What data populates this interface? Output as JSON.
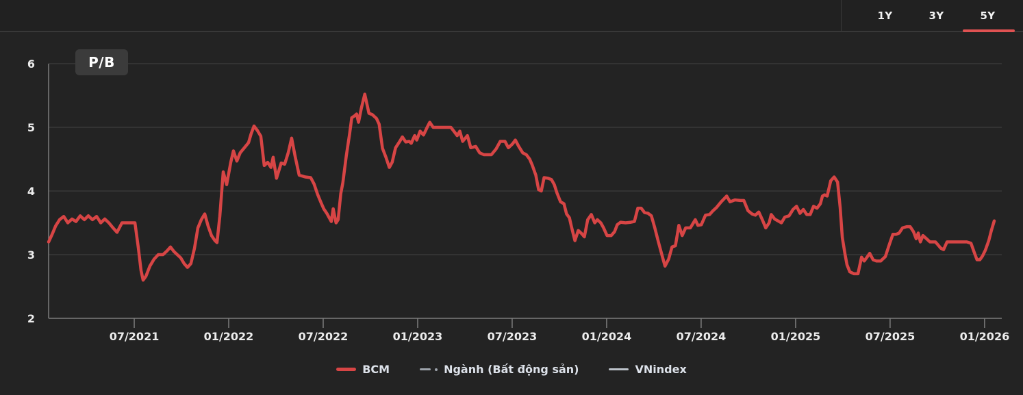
{
  "header": {
    "tabs": [
      {
        "label": "1Y",
        "active": false
      },
      {
        "label": "3Y",
        "active": false
      },
      {
        "label": "5Y",
        "active": true
      }
    ],
    "active_tab": "5Y",
    "active_underline_color": "#e05252"
  },
  "legend": {
    "items": [
      {
        "label": "BCM",
        "color": "#d74545",
        "style": "solid"
      },
      {
        "label": "Ngành (Bất động sản)",
        "color": "#9da3ab",
        "style": "dash-dot"
      },
      {
        "label": "VNindex",
        "color": "#bcc2ca",
        "style": "solid"
      }
    ]
  },
  "chart_data": {
    "type": "line",
    "title": "P/B",
    "ylim": [
      2,
      6
    ],
    "xlim": [
      2021.047,
      2026.091
    ],
    "y_ticks": [
      6,
      5,
      4,
      3,
      2
    ],
    "x_ticks": [
      {
        "t": 2021.5,
        "label": "07/2021"
      },
      {
        "t": 2022.0,
        "label": "01/2022"
      },
      {
        "t": 2022.5,
        "label": "07/2022"
      },
      {
        "t": 2023.0,
        "label": "01/2023"
      },
      {
        "t": 2023.5,
        "label": "07/2023"
      },
      {
        "t": 2024.0,
        "label": "01/2024"
      },
      {
        "t": 2024.5,
        "label": "07/2024"
      },
      {
        "t": 2025.0,
        "label": "01/2025"
      },
      {
        "t": 2025.5,
        "label": "07/2025"
      },
      {
        "t": 2026.0,
        "label": "01/2026"
      }
    ],
    "grid": "horizontal",
    "legend_position": "bottom-center",
    "colors": {
      "background": "#232323",
      "grid": "#434343",
      "axis": "#7d7d7d",
      "tick_label": "#ececec"
    },
    "series": [
      {
        "name": "BCM",
        "color": "#d74545",
        "line_style": "solid",
        "visible": true,
        "x_unit": "decimal_year",
        "points": [
          [
            2021.047,
            3.2
          ],
          [
            2021.066,
            3.32
          ],
          [
            2021.084,
            3.45
          ],
          [
            2021.105,
            3.55
          ],
          [
            2021.127,
            3.6
          ],
          [
            2021.149,
            3.5
          ],
          [
            2021.171,
            3.56
          ],
          [
            2021.192,
            3.52
          ],
          [
            2021.214,
            3.61
          ],
          [
            2021.236,
            3.55
          ],
          [
            2021.257,
            3.61
          ],
          [
            2021.279,
            3.55
          ],
          [
            2021.301,
            3.6
          ],
          [
            2021.323,
            3.5
          ],
          [
            2021.344,
            3.56
          ],
          [
            2021.366,
            3.5
          ],
          [
            2021.388,
            3.42
          ],
          [
            2021.409,
            3.35
          ],
          [
            2021.435,
            3.5
          ],
          [
            2021.475,
            3.5
          ],
          [
            2021.504,
            3.5
          ],
          [
            2021.522,
            3.1
          ],
          [
            2021.536,
            2.75
          ],
          [
            2021.547,
            2.6
          ],
          [
            2021.562,
            2.66
          ],
          [
            2021.583,
            2.82
          ],
          [
            2021.605,
            2.93
          ],
          [
            2021.627,
            3.0
          ],
          [
            2021.652,
            3.0
          ],
          [
            2021.674,
            3.06
          ],
          [
            2021.692,
            3.12
          ],
          [
            2021.71,
            3.05
          ],
          [
            2021.728,
            3.0
          ],
          [
            2021.746,
            2.95
          ],
          [
            2021.764,
            2.86
          ],
          [
            2021.782,
            2.8
          ],
          [
            2021.8,
            2.86
          ],
          [
            2021.819,
            3.1
          ],
          [
            2021.837,
            3.42
          ],
          [
            2021.855,
            3.55
          ],
          [
            2021.873,
            3.64
          ],
          [
            2021.891,
            3.45
          ],
          [
            2021.909,
            3.3
          ],
          [
            2021.927,
            3.22
          ],
          [
            2021.938,
            3.19
          ],
          [
            2021.953,
            3.6
          ],
          [
            2021.971,
            4.3
          ],
          [
            2021.989,
            4.1
          ],
          [
            2022.011,
            4.45
          ],
          [
            2022.025,
            4.63
          ],
          [
            2022.043,
            4.47
          ],
          [
            2022.061,
            4.6
          ],
          [
            2022.083,
            4.68
          ],
          [
            2022.105,
            4.76
          ],
          [
            2022.119,
            4.9
          ],
          [
            2022.134,
            5.02
          ],
          [
            2022.152,
            4.95
          ],
          [
            2022.17,
            4.86
          ],
          [
            2022.188,
            4.4
          ],
          [
            2022.206,
            4.45
          ],
          [
            2022.224,
            4.37
          ],
          [
            2022.235,
            4.53
          ],
          [
            2022.253,
            4.2
          ],
          [
            2022.278,
            4.44
          ],
          [
            2022.296,
            4.42
          ],
          [
            2022.315,
            4.6
          ],
          [
            2022.333,
            4.83
          ],
          [
            2022.351,
            4.55
          ],
          [
            2022.373,
            4.25
          ],
          [
            2022.405,
            4.22
          ],
          [
            2022.434,
            4.21
          ],
          [
            2022.452,
            4.11
          ],
          [
            2022.47,
            3.95
          ],
          [
            2022.488,
            3.82
          ],
          [
            2022.503,
            3.72
          ],
          [
            2022.521,
            3.64
          ],
          [
            2022.532,
            3.58
          ],
          [
            2022.543,
            3.52
          ],
          [
            2022.553,
            3.72
          ],
          [
            2022.568,
            3.5
          ],
          [
            2022.579,
            3.55
          ],
          [
            2022.593,
            3.96
          ],
          [
            2022.604,
            4.13
          ],
          [
            2022.622,
            4.55
          ],
          [
            2022.64,
            4.9
          ],
          [
            2022.651,
            5.15
          ],
          [
            2022.666,
            5.18
          ],
          [
            2022.677,
            5.21
          ],
          [
            2022.687,
            5.08
          ],
          [
            2022.702,
            5.3
          ],
          [
            2022.72,
            5.52
          ],
          [
            2022.742,
            5.22
          ],
          [
            2022.76,
            5.2
          ],
          [
            2022.782,
            5.14
          ],
          [
            2022.796,
            5.05
          ],
          [
            2022.814,
            4.67
          ],
          [
            2022.832,
            4.53
          ],
          [
            2022.85,
            4.37
          ],
          [
            2022.865,
            4.45
          ],
          [
            2022.883,
            4.68
          ],
          [
            2022.905,
            4.78
          ],
          [
            2022.919,
            4.85
          ],
          [
            2022.937,
            4.77
          ],
          [
            2022.955,
            4.78
          ],
          [
            2022.966,
            4.75
          ],
          [
            2022.984,
            4.87
          ],
          [
            2022.995,
            4.8
          ],
          [
            2023.013,
            4.94
          ],
          [
            2023.031,
            4.88
          ],
          [
            2023.05,
            5.0
          ],
          [
            2023.064,
            5.08
          ],
          [
            2023.082,
            5.0
          ],
          [
            2023.111,
            5.0
          ],
          [
            2023.147,
            5.0
          ],
          [
            2023.176,
            5.0
          ],
          [
            2023.194,
            4.93
          ],
          [
            2023.209,
            4.87
          ],
          [
            2023.223,
            4.94
          ],
          [
            2023.238,
            4.78
          ],
          [
            2023.263,
            4.87
          ],
          [
            2023.281,
            4.68
          ],
          [
            2023.307,
            4.7
          ],
          [
            2023.328,
            4.6
          ],
          [
            2023.35,
            4.57
          ],
          [
            2023.39,
            4.57
          ],
          [
            2023.415,
            4.66
          ],
          [
            2023.437,
            4.78
          ],
          [
            2023.462,
            4.78
          ],
          [
            2023.48,
            4.68
          ],
          [
            2023.502,
            4.74
          ],
          [
            2023.517,
            4.8
          ],
          [
            2023.535,
            4.7
          ],
          [
            2023.556,
            4.6
          ],
          [
            2023.575,
            4.57
          ],
          [
            2023.593,
            4.5
          ],
          [
            2023.607,
            4.4
          ],
          [
            2023.625,
            4.25
          ],
          [
            2023.64,
            4.02
          ],
          [
            2023.654,
            4.0
          ],
          [
            2023.669,
            4.21
          ],
          [
            2023.69,
            4.2
          ],
          [
            2023.708,
            4.18
          ],
          [
            2023.723,
            4.1
          ],
          [
            2023.737,
            3.97
          ],
          [
            2023.756,
            3.83
          ],
          [
            2023.774,
            3.8
          ],
          [
            2023.788,
            3.64
          ],
          [
            2023.803,
            3.58
          ],
          [
            2023.813,
            3.45
          ],
          [
            2023.832,
            3.22
          ],
          [
            2023.85,
            3.38
          ],
          [
            2023.868,
            3.33
          ],
          [
            2023.882,
            3.28
          ],
          [
            2023.9,
            3.55
          ],
          [
            2023.919,
            3.63
          ],
          [
            2023.937,
            3.5
          ],
          [
            2023.951,
            3.55
          ],
          [
            2023.969,
            3.5
          ],
          [
            2023.984,
            3.42
          ],
          [
            2024.002,
            3.3
          ],
          [
            2024.024,
            3.3
          ],
          [
            2024.042,
            3.36
          ],
          [
            2024.056,
            3.47
          ],
          [
            2024.074,
            3.51
          ],
          [
            2024.1,
            3.5
          ],
          [
            2024.129,
            3.51
          ],
          [
            2024.147,
            3.52
          ],
          [
            2024.165,
            3.73
          ],
          [
            2024.183,
            3.73
          ],
          [
            2024.201,
            3.66
          ],
          [
            2024.219,
            3.65
          ],
          [
            2024.237,
            3.61
          ],
          [
            2024.255,
            3.42
          ],
          [
            2024.273,
            3.21
          ],
          [
            2024.291,
            3.01
          ],
          [
            2024.309,
            2.82
          ],
          [
            2024.328,
            2.93
          ],
          [
            2024.346,
            3.12
          ],
          [
            2024.364,
            3.14
          ],
          [
            2024.382,
            3.46
          ],
          [
            2024.4,
            3.3
          ],
          [
            2024.418,
            3.42
          ],
          [
            2024.443,
            3.42
          ],
          [
            2024.469,
            3.55
          ],
          [
            2024.483,
            3.46
          ],
          [
            2024.501,
            3.47
          ],
          [
            2024.523,
            3.62
          ],
          [
            2024.545,
            3.63
          ],
          [
            2024.563,
            3.69
          ],
          [
            2024.581,
            3.74
          ],
          [
            2024.606,
            3.83
          ],
          [
            2024.635,
            3.92
          ],
          [
            2024.653,
            3.83
          ],
          [
            2024.679,
            3.86
          ],
          [
            2024.708,
            3.85
          ],
          [
            2024.726,
            3.85
          ],
          [
            2024.748,
            3.69
          ],
          [
            2024.769,
            3.64
          ],
          [
            2024.787,
            3.62
          ],
          [
            2024.805,
            3.67
          ],
          [
            2024.824,
            3.55
          ],
          [
            2024.842,
            3.42
          ],
          [
            2024.86,
            3.5
          ],
          [
            2024.871,
            3.63
          ],
          [
            2024.889,
            3.56
          ],
          [
            2024.907,
            3.53
          ],
          [
            2024.925,
            3.5
          ],
          [
            2024.943,
            3.59
          ],
          [
            2024.965,
            3.61
          ],
          [
            2024.986,
            3.71
          ],
          [
            2025.005,
            3.76
          ],
          [
            2025.023,
            3.65
          ],
          [
            2025.041,
            3.71
          ],
          [
            2025.059,
            3.63
          ],
          [
            2025.077,
            3.63
          ],
          [
            2025.095,
            3.76
          ],
          [
            2025.113,
            3.73
          ],
          [
            2025.131,
            3.8
          ],
          [
            2025.142,
            3.92
          ],
          [
            2025.153,
            3.94
          ],
          [
            2025.167,
            3.92
          ],
          [
            2025.186,
            4.16
          ],
          [
            2025.204,
            4.22
          ],
          [
            2025.222,
            4.14
          ],
          [
            2025.236,
            3.74
          ],
          [
            2025.247,
            3.27
          ],
          [
            2025.262,
            3.0
          ],
          [
            2025.272,
            2.84
          ],
          [
            2025.287,
            2.73
          ],
          [
            2025.309,
            2.7
          ],
          [
            2025.33,
            2.7
          ],
          [
            2025.349,
            2.96
          ],
          [
            2025.363,
            2.9
          ],
          [
            2025.378,
            2.96
          ],
          [
            2025.392,
            3.02
          ],
          [
            2025.41,
            2.92
          ],
          [
            2025.428,
            2.9
          ],
          [
            2025.45,
            2.9
          ],
          [
            2025.475,
            2.97
          ],
          [
            2025.497,
            3.17
          ],
          [
            2025.515,
            3.32
          ],
          [
            2025.533,
            3.32
          ],
          [
            2025.548,
            3.34
          ],
          [
            2025.566,
            3.42
          ],
          [
            2025.588,
            3.44
          ],
          [
            2025.606,
            3.44
          ],
          [
            2025.624,
            3.36
          ],
          [
            2025.638,
            3.25
          ],
          [
            2025.649,
            3.34
          ],
          [
            2025.66,
            3.2
          ],
          [
            2025.674,
            3.3
          ],
          [
            2025.693,
            3.25
          ],
          [
            2025.711,
            3.2
          ],
          [
            2025.74,
            3.2
          ],
          [
            2025.769,
            3.1
          ],
          [
            2025.783,
            3.08
          ],
          [
            2025.801,
            3.2
          ],
          [
            2025.834,
            3.2
          ],
          [
            2025.87,
            3.2
          ],
          [
            2025.906,
            3.2
          ],
          [
            2025.928,
            3.18
          ],
          [
            2025.946,
            3.03
          ],
          [
            2025.96,
            2.92
          ],
          [
            2025.975,
            2.92
          ],
          [
            2025.989,
            2.98
          ],
          [
            2026.004,
            3.07
          ],
          [
            2026.022,
            3.22
          ],
          [
            2026.036,
            3.38
          ],
          [
            2026.051,
            3.53
          ]
        ]
      },
      {
        "name": "Ngành (Bất động sản)",
        "color": "#9da3ab",
        "line_style": "dash-dot",
        "visible": false,
        "points": []
      },
      {
        "name": "VNindex",
        "color": "#bcc2ca",
        "line_style": "solid",
        "visible": false,
        "points": []
      }
    ]
  }
}
